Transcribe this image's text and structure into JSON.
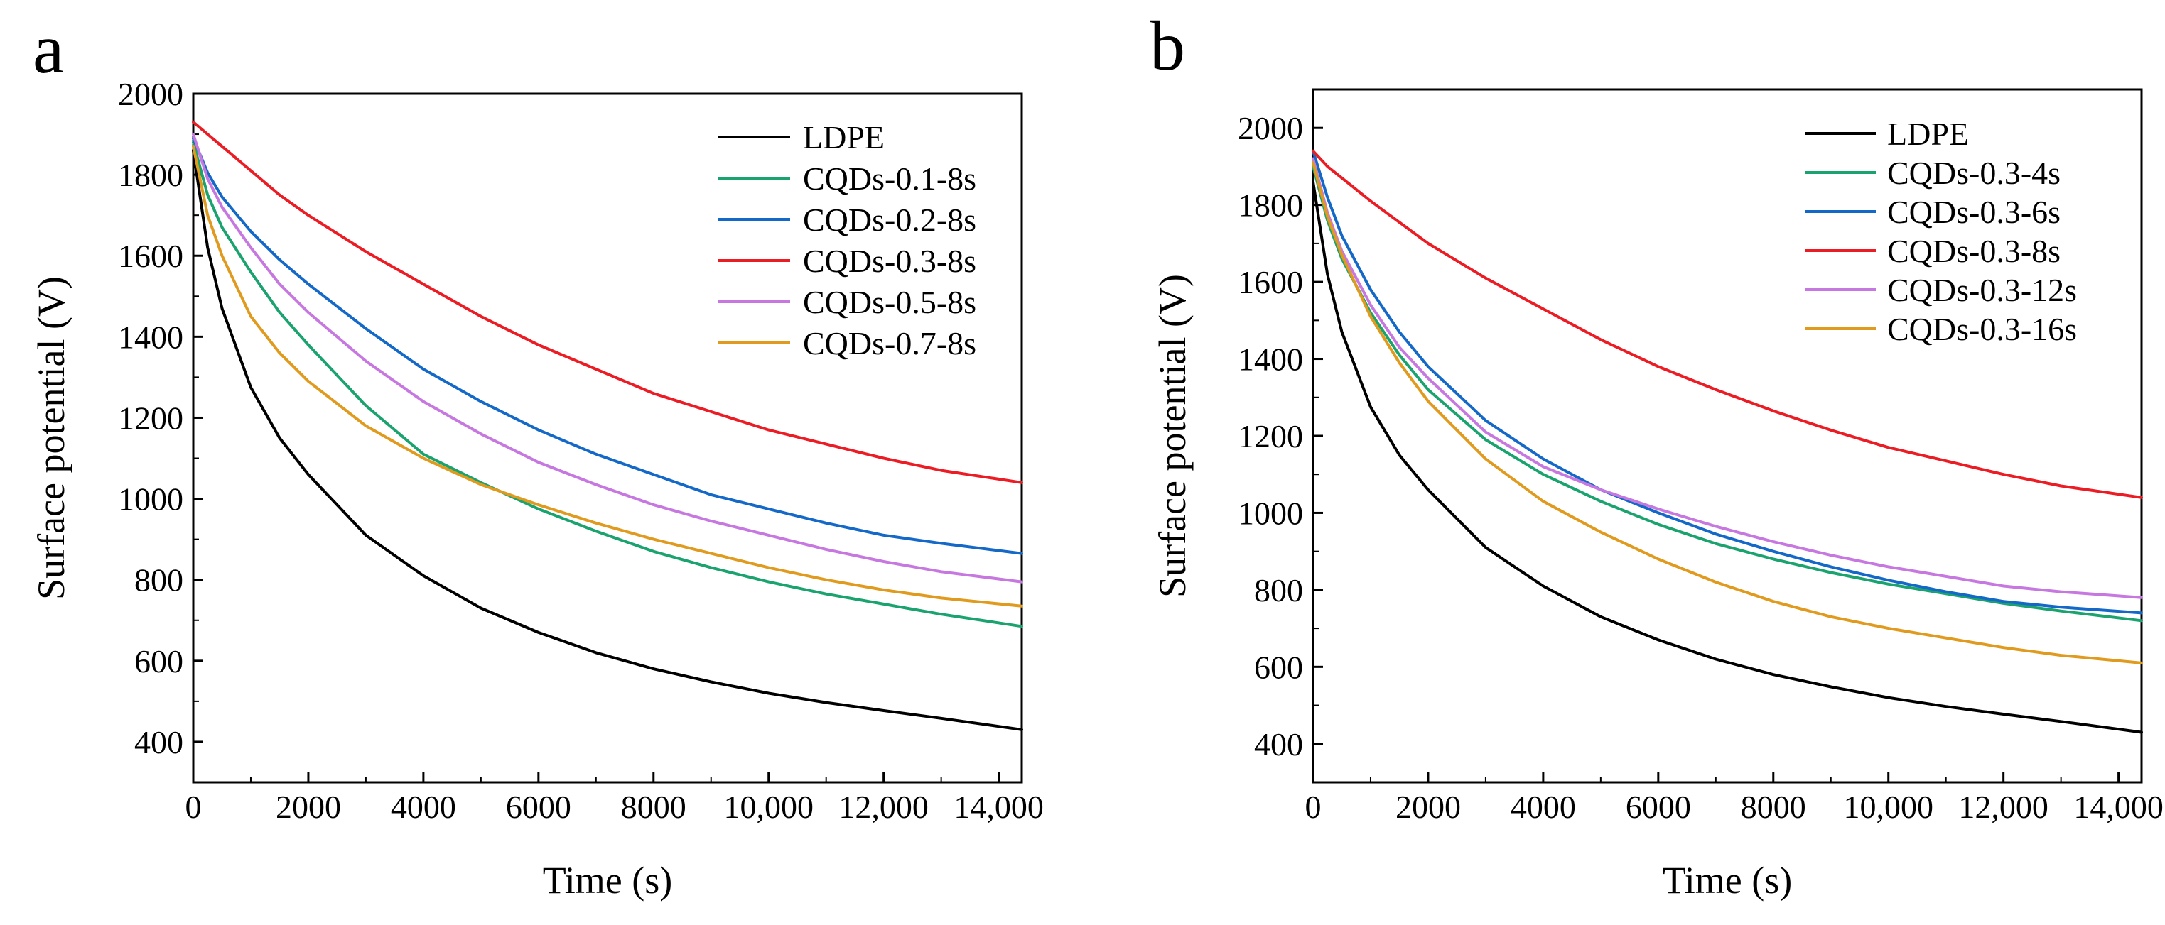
{
  "chart_data": [
    {
      "type": "line",
      "panel_label": "a",
      "xlabel": "Time (s)",
      "ylabel": "Surface potential (V)",
      "xlim": [
        0,
        14400
      ],
      "ylim": [
        300,
        2000
      ],
      "xticks": [
        0,
        2000,
        4000,
        6000,
        8000,
        10000,
        12000,
        14000
      ],
      "xtick_labels": [
        "0",
        "2000",
        "4000",
        "6000",
        "8000",
        "10,000",
        "12,000",
        "14,000"
      ],
      "yticks": [
        400,
        600,
        800,
        1000,
        1200,
        1400,
        1600,
        1800,
        2000
      ],
      "ytick_labels": [
        "400",
        "600",
        "800",
        "1000",
        "1200",
        "1400",
        "1600",
        "1800",
        "2000"
      ],
      "legend_position": "top-right",
      "series": [
        {
          "name": "LDPE",
          "color": "#000000",
          "x": [
            0,
            250,
            500,
            1000,
            1500,
            2000,
            3000,
            4000,
            5000,
            6000,
            7000,
            8000,
            9000,
            10000,
            11000,
            12000,
            13000,
            14400
          ],
          "values": [
            1860,
            1620,
            1470,
            1275,
            1150,
            1060,
            910,
            810,
            730,
            670,
            620,
            580,
            548,
            520,
            497,
            477,
            458,
            430
          ]
        },
        {
          "name": "CQDs-0.1-8s",
          "color": "#1aa36f",
          "x": [
            0,
            250,
            500,
            1000,
            1500,
            2000,
            3000,
            4000,
            5000,
            6000,
            7000,
            8000,
            9000,
            10000,
            11000,
            12000,
            13000,
            14400
          ],
          "values": [
            1880,
            1750,
            1670,
            1560,
            1460,
            1380,
            1230,
            1110,
            1040,
            975,
            920,
            870,
            830,
            795,
            765,
            740,
            715,
            685
          ]
        },
        {
          "name": "CQDs-0.2-8s",
          "color": "#1469c8",
          "x": [
            0,
            250,
            500,
            1000,
            1500,
            2000,
            3000,
            4000,
            5000,
            6000,
            7000,
            8000,
            9000,
            10000,
            11000,
            12000,
            13000,
            14400
          ],
          "values": [
            1890,
            1805,
            1745,
            1660,
            1590,
            1530,
            1420,
            1320,
            1240,
            1170,
            1110,
            1060,
            1010,
            975,
            940,
            910,
            890,
            865
          ]
        },
        {
          "name": "CQDs-0.3-8s",
          "color": "#ec1c24",
          "x": [
            0,
            250,
            500,
            1000,
            1500,
            2000,
            3000,
            4000,
            5000,
            6000,
            7000,
            8000,
            9000,
            10000,
            11000,
            12000,
            13000,
            14400
          ],
          "values": [
            1930,
            1900,
            1870,
            1810,
            1750,
            1700,
            1610,
            1530,
            1450,
            1380,
            1320,
            1260,
            1215,
            1170,
            1135,
            1100,
            1070,
            1040
          ]
        },
        {
          "name": "CQDs-0.5-8s",
          "color": "#c678e0",
          "x": [
            0,
            250,
            500,
            1000,
            1500,
            2000,
            3000,
            4000,
            5000,
            6000,
            7000,
            8000,
            9000,
            10000,
            11000,
            12000,
            13000,
            14400
          ],
          "values": [
            1900,
            1790,
            1720,
            1620,
            1530,
            1460,
            1340,
            1240,
            1160,
            1090,
            1035,
            985,
            945,
            910,
            875,
            845,
            820,
            795
          ]
        },
        {
          "name": "CQDs-0.7-8s",
          "color": "#e09a1e",
          "x": [
            0,
            250,
            500,
            1000,
            1500,
            2000,
            3000,
            4000,
            5000,
            6000,
            7000,
            8000,
            9000,
            10000,
            11000,
            12000,
            13000,
            14400
          ],
          "values": [
            1870,
            1700,
            1600,
            1450,
            1360,
            1290,
            1180,
            1100,
            1035,
            985,
            940,
            900,
            865,
            830,
            800,
            775,
            755,
            735
          ]
        }
      ]
    },
    {
      "type": "line",
      "panel_label": "b",
      "xlabel": "Time (s)",
      "ylabel": "Surface potential (V)",
      "xlim": [
        0,
        14400
      ],
      "ylim": [
        300,
        2100
      ],
      "xticks": [
        0,
        2000,
        4000,
        6000,
        8000,
        10000,
        12000,
        14000
      ],
      "xtick_labels": [
        "0",
        "2000",
        "4000",
        "6000",
        "8000",
        "10,000",
        "12,000",
        "14,000"
      ],
      "yticks": [
        400,
        600,
        800,
        1000,
        1200,
        1400,
        1600,
        1800,
        2000
      ],
      "ytick_labels": [
        "400",
        "600",
        "800",
        "1000",
        "1200",
        "1400",
        "1600",
        "1800",
        "2000"
      ],
      "legend_position": "top-right",
      "series": [
        {
          "name": "LDPE",
          "color": "#000000",
          "x": [
            0,
            250,
            500,
            1000,
            1500,
            2000,
            3000,
            4000,
            5000,
            6000,
            7000,
            8000,
            9000,
            10000,
            11000,
            12000,
            13000,
            14400
          ],
          "values": [
            1860,
            1620,
            1470,
            1275,
            1150,
            1060,
            910,
            810,
            730,
            670,
            620,
            580,
            548,
            520,
            497,
            477,
            458,
            430
          ]
        },
        {
          "name": "CQDs-0.3-4s",
          "color": "#1aa36f",
          "x": [
            0,
            250,
            500,
            1000,
            1500,
            2000,
            3000,
            4000,
            5000,
            6000,
            7000,
            8000,
            9000,
            10000,
            11000,
            12000,
            13000,
            14400
          ],
          "values": [
            1900,
            1760,
            1660,
            1520,
            1410,
            1320,
            1190,
            1100,
            1030,
            970,
            920,
            880,
            845,
            815,
            790,
            765,
            745,
            720
          ]
        },
        {
          "name": "CQDs-0.3-6s",
          "color": "#1469c8",
          "x": [
            0,
            250,
            500,
            1000,
            1500,
            2000,
            3000,
            4000,
            5000,
            6000,
            7000,
            8000,
            9000,
            10000,
            11000,
            12000,
            13000,
            14400
          ],
          "values": [
            1940,
            1820,
            1720,
            1580,
            1470,
            1380,
            1240,
            1140,
            1060,
            1000,
            945,
            900,
            860,
            825,
            795,
            770,
            755,
            740
          ]
        },
        {
          "name": "CQDs-0.3-8s",
          "color": "#ec1c24",
          "x": [
            0,
            250,
            500,
            1000,
            1500,
            2000,
            3000,
            4000,
            5000,
            6000,
            7000,
            8000,
            9000,
            10000,
            11000,
            12000,
            13000,
            14400
          ],
          "values": [
            1940,
            1900,
            1870,
            1810,
            1755,
            1700,
            1610,
            1530,
            1450,
            1380,
            1320,
            1265,
            1215,
            1170,
            1135,
            1100,
            1070,
            1040
          ]
        },
        {
          "name": "CQDs-0.3-12s",
          "color": "#c678e0",
          "x": [
            0,
            250,
            500,
            1000,
            1500,
            2000,
            3000,
            4000,
            5000,
            6000,
            7000,
            8000,
            9000,
            10000,
            11000,
            12000,
            13000,
            14400
          ],
          "values": [
            1920,
            1780,
            1680,
            1540,
            1430,
            1350,
            1210,
            1120,
            1060,
            1010,
            965,
            925,
            890,
            860,
            835,
            810,
            795,
            780
          ]
        },
        {
          "name": "CQDs-0.3-16s",
          "color": "#e09a1e",
          "x": [
            0,
            250,
            500,
            1000,
            1500,
            2000,
            3000,
            4000,
            5000,
            6000,
            7000,
            8000,
            9000,
            10000,
            11000,
            12000,
            13000,
            14400
          ],
          "values": [
            1910,
            1770,
            1670,
            1510,
            1390,
            1290,
            1140,
            1030,
            950,
            880,
            820,
            770,
            730,
            700,
            675,
            650,
            630,
            610
          ]
        }
      ]
    }
  ]
}
